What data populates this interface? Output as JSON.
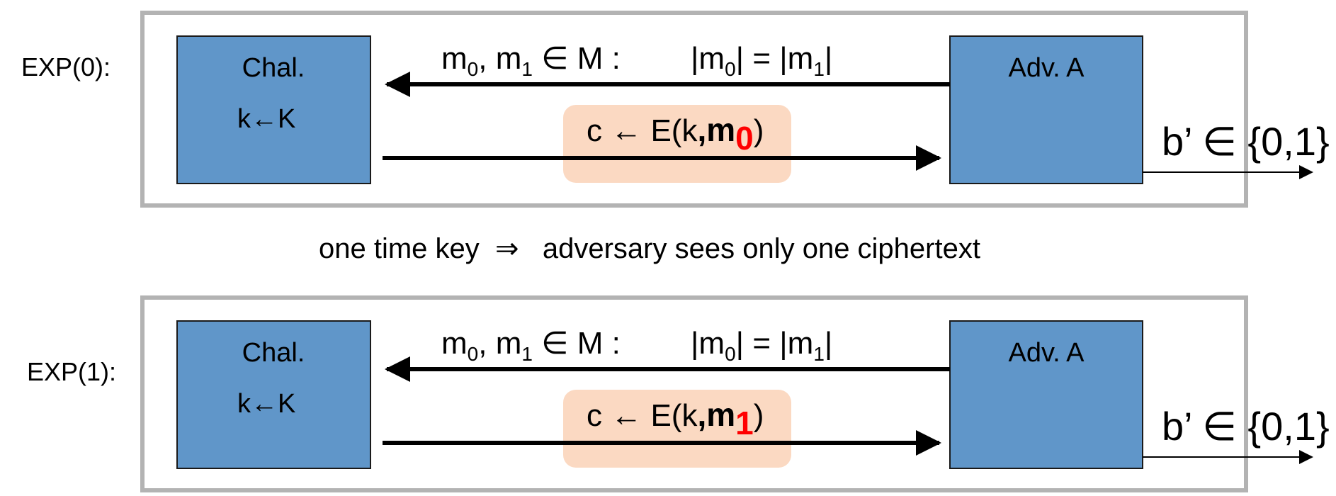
{
  "colors": {
    "frame": "#b3b3b3",
    "box_fill": "#6096c9",
    "box_stroke": "#1a1a1a",
    "highlight": "#fbd9c2",
    "accent_red": "#ff0000",
    "arrow": "#000000"
  },
  "middle_text": "one time key  ⇒   adversary sees only one ciphertext",
  "experiments": [
    {
      "label": "EXP(0):",
      "challenger": {
        "title": "Chal.",
        "key_line": "k←K"
      },
      "adversary": {
        "title": "Adv. A"
      },
      "msg": {
        "m": "m",
        "sub0": "0",
        "sep": ", ",
        "sub1": "1",
        "in": " ∈ M :",
        "eq_open": "|m",
        "eq_mid": "| = |m",
        "eq_close": "|"
      },
      "cipher": {
        "prefix": "c ← E(k",
        "comma": ",",
        "m": "m",
        "bit": "0",
        "close": ")"
      },
      "output": "b’ ∈ {0,1}"
    },
    {
      "label": "EXP(1):",
      "challenger": {
        "title": "Chal.",
        "key_line": "k←K"
      },
      "adversary": {
        "title": "Adv. A"
      },
      "msg": {
        "m": "m",
        "sub0": "0",
        "sep": ", ",
        "sub1": "1",
        "in": " ∈ M :",
        "eq_open": "|m",
        "eq_mid": "| = |m",
        "eq_close": "|"
      },
      "cipher": {
        "prefix": "c ← E(k",
        "comma": ",",
        "m": "m",
        "bit": "1",
        "close": ")"
      },
      "output": "b’ ∈ {0,1}"
    }
  ]
}
